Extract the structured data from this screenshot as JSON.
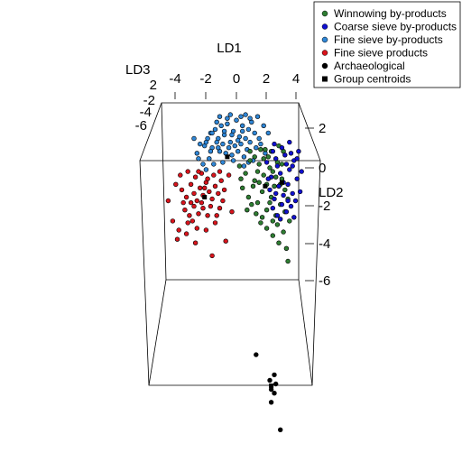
{
  "chart_data": {
    "type": "scatter",
    "projection": "3d",
    "title": "",
    "axes": {
      "LD1": {
        "label": "LD1",
        "ticks": [
          "-4",
          "-2",
          "0",
          "2",
          "4"
        ],
        "range": [
          -5,
          4.5
        ]
      },
      "LD2": {
        "label": "LD2",
        "ticks": [
          "2",
          "0",
          "-2",
          "-4",
          "-6"
        ],
        "range": [
          -6,
          3
        ]
      },
      "LD3": {
        "label": "LD3",
        "ticks": [
          "2",
          "-2",
          "-4",
          "-6"
        ],
        "range": [
          -7,
          3
        ]
      }
    },
    "legend": {
      "position": "top-right",
      "entries": [
        {
          "label": "Winnowing by-products",
          "color": "#2e7d32",
          "symbol": "circle"
        },
        {
          "label": "Coarse sieve by-products",
          "color": "#1010d0",
          "symbol": "circle"
        },
        {
          "label": "Fine sieve by-products",
          "color": "#2f86d6",
          "symbol": "circle"
        },
        {
          "label": "Fine sieve products",
          "color": "#d8141c",
          "symbol": "circle"
        },
        {
          "label": "Archaeological",
          "color": "#000000",
          "symbol": "circle"
        },
        {
          "label": "Group centroids",
          "color": "#000000",
          "symbol": "square"
        }
      ]
    },
    "series": [
      {
        "name": "Fine sieve by-products",
        "color": "#2f86d6",
        "points": [
          [
            -1.7,
            1.9
          ],
          [
            -1.4,
            2.1
          ],
          [
            -1.2,
            1.6
          ],
          [
            -1.0,
            2.3
          ],
          [
            -0.8,
            1.8
          ],
          [
            -0.6,
            2.4
          ],
          [
            -0.4,
            1.4
          ],
          [
            -0.2,
            2.0
          ],
          [
            0.0,
            2.6
          ],
          [
            0.2,
            1.7
          ],
          [
            0.4,
            2.3
          ],
          [
            0.6,
            1.6
          ],
          [
            0.8,
            2.1
          ],
          [
            1.0,
            2.5
          ],
          [
            1.2,
            1.9
          ],
          [
            -2.1,
            1.2
          ],
          [
            -1.9,
            1.6
          ],
          [
            -1.6,
            1.1
          ],
          [
            -1.3,
            1.4
          ],
          [
            -1.1,
            0.9
          ],
          [
            -0.9,
            1.3
          ],
          [
            -0.7,
            0.8
          ],
          [
            -0.5,
            1.1
          ],
          [
            -0.3,
            0.7
          ],
          [
            -0.1,
            1.2
          ],
          [
            0.1,
            0.9
          ],
          [
            0.3,
            1.3
          ],
          [
            0.5,
            0.6
          ],
          [
            0.7,
            1.0
          ],
          [
            1.4,
            2.8
          ],
          [
            -2.4,
            1.3
          ],
          [
            -2.6,
            0.8
          ],
          [
            -1.8,
            0.5
          ],
          [
            -1.5,
            0.2
          ],
          [
            -0.9,
            0.3
          ],
          [
            -2.2,
            0.2
          ],
          [
            -2.0,
            -0.1
          ],
          [
            1.6,
            1.3
          ],
          [
            1.8,
            2.3
          ],
          [
            1.9,
            0.8
          ],
          [
            -0.6,
            2.7
          ],
          [
            0.3,
            2.8
          ],
          [
            0.9,
            2.7
          ],
          [
            -1.1,
            2.8
          ],
          [
            -0.2,
            0.4
          ],
          [
            0.5,
            0.1
          ],
          [
            1.1,
            0.4
          ],
          [
            -2.8,
            1.6
          ],
          [
            -1.3,
            2.5
          ],
          [
            -0.4,
            2.9
          ],
          [
            0.6,
            2.9
          ],
          [
            1.3,
            1.1
          ],
          [
            -2.5,
            0.5
          ],
          [
            -1.7,
            0.9
          ],
          [
            0.8,
            0.3
          ],
          [
            -0.8,
            2.0
          ],
          [
            0.1,
            1.5
          ],
          [
            0.4,
            2.0
          ],
          [
            -1.6,
            1.9
          ],
          [
            1.5,
            1.6
          ],
          [
            -0.3,
            1.8
          ],
          [
            0.9,
            1.4
          ],
          [
            -1.2,
            1.1
          ],
          [
            -2.0,
            1.4
          ],
          [
            2.1,
            1.9
          ]
        ]
      },
      {
        "name": "Fine sieve products",
        "color": "#d8141c",
        "points": [
          [
            -3.6,
            -1.2
          ],
          [
            -3.3,
            -1.6
          ],
          [
            -3.0,
            -0.9
          ],
          [
            -2.8,
            -1.4
          ],
          [
            -2.6,
            -1.8
          ],
          [
            -2.4,
            -1.1
          ],
          [
            -2.2,
            -1.5
          ],
          [
            -2.0,
            -0.8
          ],
          [
            -1.8,
            -1.3
          ],
          [
            -1.6,
            -1.7
          ],
          [
            -1.4,
            -1.0
          ],
          [
            -1.2,
            -1.4
          ],
          [
            -1.0,
            -0.7
          ],
          [
            -0.8,
            -1.2
          ],
          [
            -3.4,
            -2.3
          ],
          [
            -3.1,
            -2.6
          ],
          [
            -2.8,
            -2.1
          ],
          [
            -2.5,
            -2.5
          ],
          [
            -2.2,
            -2.2
          ],
          [
            -1.9,
            -2.6
          ],
          [
            -3.7,
            -0.4
          ],
          [
            -3.2,
            -0.2
          ],
          [
            -2.7,
            -0.5
          ],
          [
            -2.3,
            -0.3
          ],
          [
            -1.9,
            -0.6
          ],
          [
            -1.5,
            -0.4
          ],
          [
            -4.2,
            -2.9
          ],
          [
            -3.8,
            -3.4
          ],
          [
            -3.2,
            -3.0
          ],
          [
            -2.6,
            -3.3
          ],
          [
            -2.0,
            -3.4
          ],
          [
            -1.4,
            -3.0
          ],
          [
            -3.9,
            -3.9
          ],
          [
            -1.6,
            -4.8
          ],
          [
            -0.7,
            -4.0
          ],
          [
            -0.3,
            -2.4
          ],
          [
            -1.1,
            -2.2
          ],
          [
            -4.5,
            -1.8
          ],
          [
            -0.5,
            -0.4
          ],
          [
            -2.9,
            -2.9
          ],
          [
            -2.3,
            -1.9
          ],
          [
            -1.7,
            -2.1
          ],
          [
            -3.5,
            -1.9
          ],
          [
            -3.0,
            -1.9
          ],
          [
            -2.1,
            -1.1
          ],
          [
            -1.3,
            -2.6
          ],
          [
            -4.0,
            -0.9
          ],
          [
            -0.9,
            -1.8
          ],
          [
            -2.5,
            -0.2
          ],
          [
            -1.1,
            -0.2
          ],
          [
            -3.3,
            -3.6
          ],
          [
            -2.7,
            -4.1
          ]
        ]
      },
      {
        "name": "Winnowing by-products",
        "color": "#2e7d32",
        "points": [
          [
            0.2,
            0.1
          ],
          [
            0.6,
            -0.3
          ],
          [
            0.9,
            0.4
          ],
          [
            1.2,
            -0.7
          ],
          [
            1.5,
            0.2
          ],
          [
            1.8,
            -0.4
          ],
          [
            2.1,
            0.6
          ],
          [
            2.4,
            -0.2
          ],
          [
            2.7,
            0.3
          ],
          [
            3.0,
            -0.6
          ],
          [
            0.4,
            -1.1
          ],
          [
            0.8,
            -1.6
          ],
          [
            1.1,
            -1.0
          ],
          [
            1.4,
            -1.9
          ],
          [
            1.7,
            -1.3
          ],
          [
            2.0,
            -2.3
          ],
          [
            2.3,
            -1.6
          ],
          [
            2.6,
            -2.6
          ],
          [
            2.9,
            -2.0
          ],
          [
            3.2,
            -1.2
          ],
          [
            1.3,
            -2.5
          ],
          [
            1.6,
            -3.0
          ],
          [
            2.0,
            -3.3
          ],
          [
            2.4,
            -3.7
          ],
          [
            2.8,
            -4.1
          ],
          [
            3.3,
            -4.4
          ],
          [
            3.5,
            -2.9
          ],
          [
            0.7,
            -2.3
          ],
          [
            1.9,
            1.0
          ],
          [
            2.8,
            1.2
          ],
          [
            1.6,
            1.0
          ],
          [
            2.2,
            0.0
          ],
          [
            2.5,
            -1.0
          ],
          [
            3.1,
            0.9
          ],
          [
            0.3,
            -0.6
          ],
          [
            1.0,
            -2.0
          ],
          [
            1.5,
            -0.8
          ],
          [
            2.2,
            -1.9
          ],
          [
            2.7,
            -3.1
          ],
          [
            3.4,
            -1.7
          ],
          [
            0.9,
            0.9
          ],
          [
            1.2,
            0.6
          ],
          [
            1.8,
            0.5
          ],
          [
            2.3,
            0.9
          ],
          [
            3.0,
            0.2
          ],
          [
            1.4,
            -0.2
          ],
          [
            2.0,
            -0.9
          ],
          [
            2.6,
            -0.5
          ],
          [
            3.2,
            -2.4
          ],
          [
            1.7,
            -2.7
          ],
          [
            2.4,
            -2.9
          ],
          [
            3.1,
            -3.5
          ],
          [
            3.4,
            -5.1
          ],
          [
            2.9,
            -0.9
          ]
        ]
      },
      {
        "name": "Coarse sieve by-products",
        "color": "#1010d0",
        "points": [
          [
            2.0,
            0.3
          ],
          [
            2.3,
            -0.5
          ],
          [
            2.6,
            0.5
          ],
          [
            2.9,
            -0.3
          ],
          [
            3.2,
            0.7
          ],
          [
            3.5,
            -0.1
          ],
          [
            3.8,
            0.4
          ],
          [
            2.2,
            -1.2
          ],
          [
            2.5,
            -1.7
          ],
          [
            2.8,
            -1.0
          ],
          [
            3.1,
            -1.5
          ],
          [
            3.4,
            -0.9
          ],
          [
            3.7,
            -1.4
          ],
          [
            4.0,
            -0.6
          ],
          [
            2.4,
            -2.2
          ],
          [
            2.7,
            -2.6
          ],
          [
            3.0,
            -2.0
          ],
          [
            3.3,
            -2.4
          ],
          [
            3.6,
            -2.1
          ],
          [
            3.9,
            -1.8
          ],
          [
            2.5,
            1.3
          ],
          [
            3.0,
            1.1
          ],
          [
            3.5,
            1.4
          ],
          [
            4.1,
            0.9
          ],
          [
            4.3,
            -0.2
          ],
          [
            2.1,
            -0.6
          ],
          [
            2.7,
            0.1
          ],
          [
            3.3,
            0.2
          ],
          [
            3.6,
            0.8
          ],
          [
            2.9,
            -2.8
          ],
          [
            3.8,
            -2.7
          ],
          [
            4.2,
            -1.3
          ],
          [
            2.4,
            0.9
          ],
          [
            3.1,
            -0.8
          ],
          [
            3.4,
            -1.8
          ],
          [
            2.6,
            -1.4
          ],
          [
            3.7,
            0.1
          ],
          [
            4.0,
            0.5
          ]
        ]
      },
      {
        "name": "Archaeological",
        "color": "#000000",
        "points": [
          [
            1.3,
            -10.2
          ],
          [
            2.2,
            -11.6
          ],
          [
            2.5,
            -11.3
          ],
          [
            2.6,
            -11.8
          ],
          [
            2.3,
            -12.1
          ],
          [
            2.5,
            -12.3
          ],
          [
            2.3,
            -12.8
          ],
          [
            2.9,
            -14.3
          ]
        ]
      }
    ],
    "centroids": [
      {
        "name": "Fine sieve by-products",
        "point": [
          -0.6,
          0.6
        ]
      },
      {
        "name": "Fine sieve products",
        "point": [
          -2.1,
          -1.6
        ]
      },
      {
        "name": "Winnowing by-products",
        "point": [
          1.9,
          -1.0
        ]
      },
      {
        "name": "Coarse sieve by-products",
        "point": [
          3.0,
          -0.8
        ]
      },
      {
        "name": "Archaeological",
        "point": [
          2.3,
          -11.9
        ]
      }
    ]
  }
}
